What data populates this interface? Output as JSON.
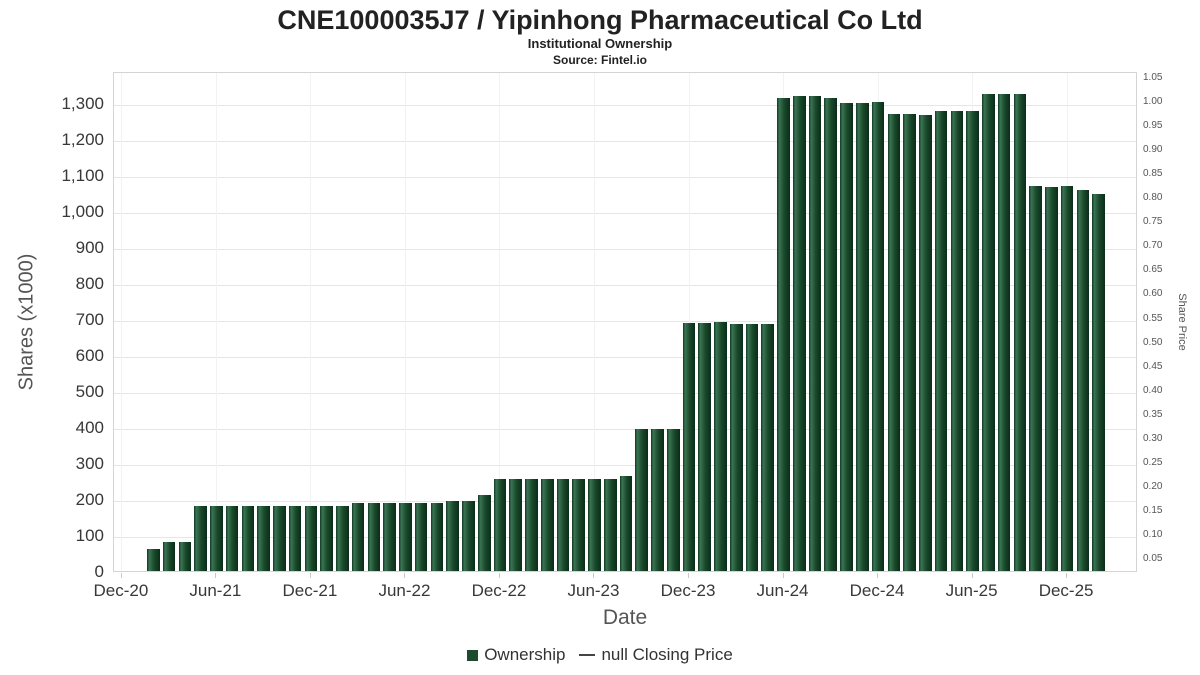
{
  "chart_data": {
    "type": "bar",
    "title": "CNE1000035J7 / Yipinhong Pharmaceutical Co Ltd",
    "subtitle": "Institutional Ownership",
    "source": "Source: Fintel.io",
    "xlabel": "Date",
    "ylabel_left": "Shares (x1000)",
    "ylabel_right": "Share Price",
    "grid": true,
    "legend_position": "bottom",
    "legend": [
      {
        "label": "Ownership",
        "marker": "square",
        "color": "#1c4b2d"
      },
      {
        "label": "null Closing Price",
        "marker": "line",
        "color": "#444444"
      }
    ],
    "x_tick_labels": [
      "Dec-20",
      "Jun-21",
      "Dec-21",
      "Jun-22",
      "Dec-22",
      "Jun-23",
      "Dec-23",
      "Jun-24",
      "Dec-24",
      "Jun-25",
      "Dec-25"
    ],
    "y_axis_left": {
      "min": 0,
      "max": 1300,
      "step": 100,
      "render_max": 1390
    },
    "y_axis_right": {
      "min": 0.05,
      "max": 1.05,
      "step": 0.05
    },
    "categories": [
      "Feb-21",
      "Mar-21",
      "Apr-21",
      "May-21",
      "Jun-21",
      "Jul-21",
      "Aug-21",
      "Sep-21",
      "Oct-21",
      "Nov-21",
      "Dec-21",
      "Jan-22",
      "Feb-22",
      "Mar-22",
      "Apr-22",
      "May-22",
      "Jun-22",
      "Jul-22",
      "Aug-22",
      "Sep-22",
      "Oct-22",
      "Nov-22",
      "Dec-22",
      "Jan-23",
      "Feb-23",
      "Mar-23",
      "Apr-23",
      "May-23",
      "Jun-23",
      "Jul-23",
      "Aug-23",
      "Sep-23",
      "Oct-23",
      "Nov-23",
      "Dec-23",
      "Jan-24",
      "Feb-24",
      "Mar-24",
      "Apr-24",
      "May-24",
      "Jun-24",
      "Jul-24",
      "Aug-24",
      "Sep-24",
      "Oct-24",
      "Nov-24",
      "Dec-24",
      "Jan-25",
      "Feb-25",
      "Mar-25",
      "Apr-25",
      "May-25",
      "Jun-25",
      "Jul-25",
      "Aug-25",
      "Sep-25",
      "Oct-25",
      "Nov-25",
      "Dec-25",
      "Jan-26",
      "Feb-26"
    ],
    "series": [
      {
        "name": "Ownership",
        "unit": "shares x1000",
        "values": [
          60,
          80,
          80,
          182,
          182,
          182,
          182,
          182,
          182,
          182,
          182,
          182,
          182,
          190,
          190,
          190,
          190,
          190,
          190,
          196,
          196,
          210,
          255,
          255,
          255,
          255,
          255,
          256,
          257,
          257,
          265,
          395,
          395,
          395,
          690,
          690,
          692,
          686,
          686,
          686,
          1315,
          1320,
          1320,
          1315,
          1300,
          1302,
          1303,
          1270,
          1270,
          1268,
          1278,
          1280,
          1278,
          1325,
          1325,
          1325,
          1070,
          1068,
          1070,
          1060,
          1048
        ]
      }
    ]
  }
}
